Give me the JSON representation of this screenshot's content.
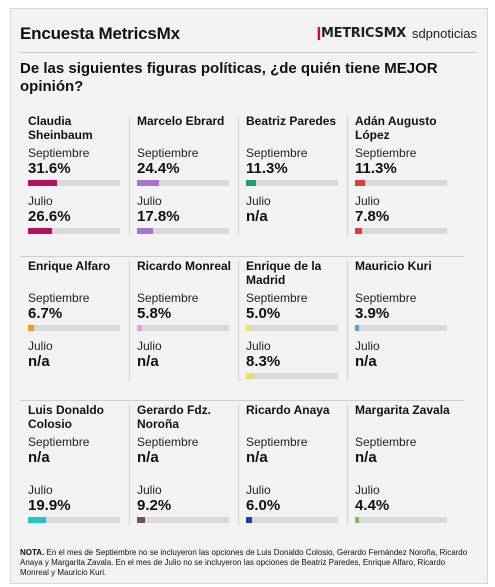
{
  "header": {
    "title": "Encuesta MetricsMx",
    "brand_metrics": "METRICSMX",
    "brand_sdp": "sdpnoticias"
  },
  "question": "De las siguientes figuras políticas, ¿de quién tiene MEJOR opinión?",
  "labels": {
    "september": "Septiembre",
    "july": "Julio"
  },
  "chart_data": {
    "type": "bar",
    "scale_max": 100,
    "series_names": [
      "Septiembre",
      "Julio"
    ],
    "candidates": [
      {
        "name": "Claudia Sheinbaum",
        "color": "#b3125e",
        "septiembre": 31.6,
        "septiembre_label": "31.6%",
        "julio": 26.6,
        "julio_label": "26.6%"
      },
      {
        "name": "Marcelo Ebrard",
        "color": "#a873cf",
        "septiembre": 24.4,
        "septiembre_label": "24.4%",
        "julio": 17.8,
        "julio_label": "17.8%"
      },
      {
        "name": "Beatriz Paredes",
        "color": "#1aa36a",
        "septiembre": 11.3,
        "septiembre_label": "11.3%",
        "julio": null,
        "julio_label": "n/a"
      },
      {
        "name": "Adán Augusto López",
        "color": "#e23b3b",
        "septiembre": 11.3,
        "septiembre_label": "11.3%",
        "julio": 7.8,
        "julio_label": "7.8%"
      },
      {
        "name": "Enrique Alfaro",
        "color": "#f39a2a",
        "septiembre": 6.7,
        "septiembre_label": "6.7%",
        "julio": null,
        "julio_label": "n/a"
      },
      {
        "name": "Ricardo Monreal",
        "color": "#ef9bd9",
        "septiembre": 5.8,
        "septiembre_label": "5.8%",
        "julio": null,
        "julio_label": "n/a"
      },
      {
        "name": "Enrique de la Madrid",
        "color": "#ece06a",
        "septiembre": 5.0,
        "septiembre_label": "5.0%",
        "julio": 8.3,
        "julio_label": "8.3%"
      },
      {
        "name": "Mauricio Kuri",
        "color": "#4aa3d9",
        "septiembre": 3.9,
        "septiembre_label": "3.9%",
        "julio": null,
        "julio_label": "n/a"
      },
      {
        "name": "Luis Donaldo Colosio",
        "color": "#1ec8c8",
        "septiembre": null,
        "septiembre_label": "n/a",
        "julio": 19.9,
        "julio_label": "19.9%"
      },
      {
        "name": "Gerardo Fdz. Noroña",
        "color": "#7a5058",
        "septiembre": null,
        "septiembre_label": "n/a",
        "julio": 9.2,
        "julio_label": "9.2%"
      },
      {
        "name": "Ricardo Anaya",
        "color": "#1f3ea8",
        "septiembre": null,
        "septiembre_label": "n/a",
        "julio": 6.0,
        "julio_label": "6.0%"
      },
      {
        "name": "Margarita Zavala",
        "color": "#7cc04a",
        "septiembre": null,
        "septiembre_label": "n/a",
        "julio": 4.4,
        "julio_label": "4.4%"
      }
    ]
  },
  "note": {
    "prefix": "NOTA.",
    "text": " En el mes de Septiembre no se incluyeron las opciones de Luis Donaldo Colosio, Gerardo Fernández Noroña, Ricardo Anaya y Margarita Zavala. En el mes de Julio no se incluyeron las opciones de Beatriz Paredes, Enrique Alfaro, Ricardo Monreal y Mauricio Kuri."
  }
}
